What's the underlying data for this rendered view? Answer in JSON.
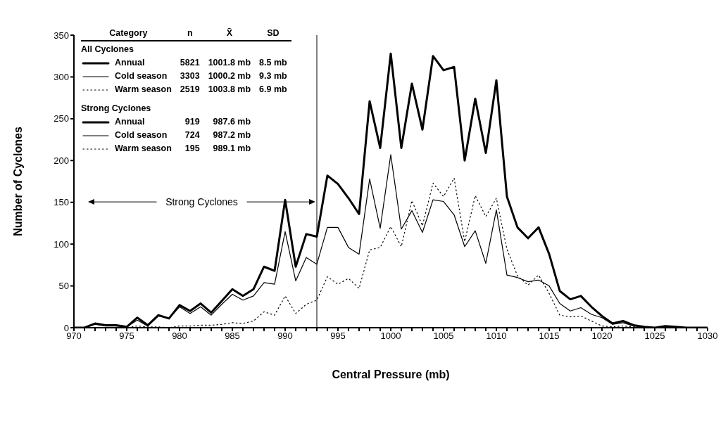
{
  "chart_data": {
    "type": "line",
    "xlabel": "Central Pressure (mb)",
    "ylabel": "Number of Cyclones",
    "x": [
      970,
      971,
      972,
      973,
      974,
      975,
      976,
      977,
      978,
      979,
      980,
      981,
      982,
      983,
      984,
      985,
      986,
      987,
      988,
      989,
      990,
      991,
      992,
      993,
      994,
      995,
      996,
      997,
      998,
      999,
      1000,
      1001,
      1002,
      1003,
      1004,
      1005,
      1006,
      1007,
      1008,
      1009,
      1010,
      1011,
      1012,
      1013,
      1014,
      1015,
      1016,
      1017,
      1018,
      1019,
      1020,
      1021,
      1022,
      1023,
      1024,
      1025,
      1026,
      1027,
      1028,
      1029,
      1030
    ],
    "series": [
      {
        "name": "Annual",
        "color": "#000000",
        "line_style": "solid",
        "values": [
          0,
          0,
          5,
          3,
          3,
          1,
          12,
          3,
          15,
          11,
          27,
          20,
          29,
          18,
          32,
          46,
          38,
          46,
          73,
          68,
          153,
          73,
          112,
          109,
          182,
          172,
          155,
          136,
          271,
          215,
          328,
          215,
          292,
          237,
          325,
          308,
          312,
          200,
          274,
          209,
          296,
          157,
          120,
          107,
          120,
          88,
          44,
          34,
          38,
          25,
          14,
          5,
          8,
          3,
          1,
          0,
          2,
          1,
          0,
          0,
          0
        ]
      },
      {
        "name": "Cold season",
        "color": "#000000",
        "line_style": "solid",
        "values": [
          0,
          0,
          4,
          2,
          2,
          1,
          9,
          2,
          14,
          11,
          25,
          17,
          25,
          15,
          28,
          40,
          33,
          38,
          54,
          52,
          115,
          56,
          84,
          76,
          120,
          120,
          96,
          88,
          178,
          119,
          207,
          118,
          140,
          114,
          153,
          151,
          135,
          97,
          116,
          77,
          141,
          63,
          60,
          55,
          57,
          50,
          29,
          20,
          24,
          16,
          12,
          4,
          6,
          2,
          1,
          0,
          1,
          0,
          0,
          0,
          0
        ]
      },
      {
        "name": "Warm season",
        "color": "#000000",
        "line_style": "dotted",
        "values": [
          0,
          0,
          0,
          0,
          0,
          0,
          2,
          1,
          1,
          0,
          2,
          2,
          3,
          3,
          4,
          6,
          5,
          8,
          19,
          15,
          38,
          17,
          28,
          33,
          61,
          52,
          59,
          47,
          93,
          96,
          121,
          97,
          152,
          122,
          173,
          157,
          179,
          103,
          158,
          133,
          155,
          94,
          62,
          51,
          63,
          41,
          15,
          13,
          14,
          8,
          2,
          1,
          2,
          1,
          0,
          0,
          0,
          0,
          0,
          0,
          0
        ]
      }
    ],
    "xlim": [
      970,
      1030
    ],
    "ylim": [
      0,
      350
    ],
    "yticks": [
      0,
      50,
      100,
      150,
      200,
      250,
      300,
      350
    ],
    "xticks": [
      970,
      {
        "value": 971,
        "label": null
      },
      {
        "value": 972,
        "label": null
      },
      {
        "value": 973,
        "label": null
      },
      {
        "value": 974,
        "label": null
      },
      975,
      {
        "value": 976,
        "label": null
      },
      {
        "value": 977,
        "label": null
      },
      {
        "value": 978,
        "label": null
      },
      {
        "value": 979,
        "label": null
      },
      980,
      {
        "value": 981,
        "label": null
      },
      {
        "value": 982,
        "label": null
      },
      {
        "value": 983,
        "label": null
      },
      {
        "value": 984,
        "label": null
      },
      985,
      {
        "value": 986,
        "label": null
      },
      {
        "value": 987,
        "label": null
      },
      {
        "value": 988,
        "label": null
      },
      {
        "value": 989,
        "label": null
      },
      990,
      {
        "value": 991,
        "label": null
      },
      {
        "value": 992,
        "label": null
      },
      {
        "value": 993,
        "label": null
      },
      {
        "value": 994,
        "label": null
      },
      995,
      {
        "value": 996,
        "label": null
      },
      {
        "value": 997,
        "label": null
      },
      {
        "value": 998,
        "label": null
      },
      {
        "value": 999,
        "label": null
      },
      1000,
      {
        "value": 1001,
        "label": null
      },
      {
        "value": 1002,
        "label": null
      },
      {
        "value": 1003,
        "label": null
      },
      {
        "value": 1004,
        "label": null
      },
      1005,
      {
        "value": 1006,
        "label": null
      },
      {
        "value": 1007,
        "label": null
      },
      {
        "value": 1008,
        "label": null
      },
      {
        "value": 1009,
        "label": null
      },
      1010,
      {
        "value": 1011,
        "label": null
      },
      {
        "value": 1012,
        "label": null
      },
      {
        "value": 1013,
        "label": null
      },
      {
        "value": 1014,
        "label": null
      },
      1015,
      {
        "value": 1016,
        "label": null
      },
      {
        "value": 1017,
        "label": null
      },
      {
        "value": 1018,
        "label": null
      },
      {
        "value": 1019,
        "label": null
      },
      1020,
      {
        "value": 1021,
        "label": null
      },
      {
        "value": 1022,
        "label": null
      },
      {
        "value": 1023,
        "label": null
      },
      {
        "value": 1024,
        "label": null
      },
      1025,
      {
        "value": 1026,
        "label": null
      },
      {
        "value": 1027,
        "label": null
      },
      {
        "value": 1028,
        "label": null
      },
      {
        "value": 1029,
        "label": null
      },
      1030
    ],
    "ref_lines": [
      {
        "axis": "x",
        "value": 993,
        "color": "#000000",
        "line_style": "solid"
      }
    ],
    "legend": "top left",
    "marker": "none",
    "annotations": [
      "Category",
      "n",
      "X̄",
      "SD",
      "All Cyclones",
      "5821",
      "1001.8 mb",
      "8.5 mb",
      "3303",
      "1000.2 mb",
      "9.3 mb",
      "2519",
      "1003.8 mb",
      "6.9 mb",
      "Strong Cyclones",
      "Annual",
      "919",
      "987.6 mb",
      "Cold season",
      "724",
      "987.2 mb",
      "Warm season",
      "195",
      "989.1 mb",
      "Strong Cyclones"
    ]
  }
}
